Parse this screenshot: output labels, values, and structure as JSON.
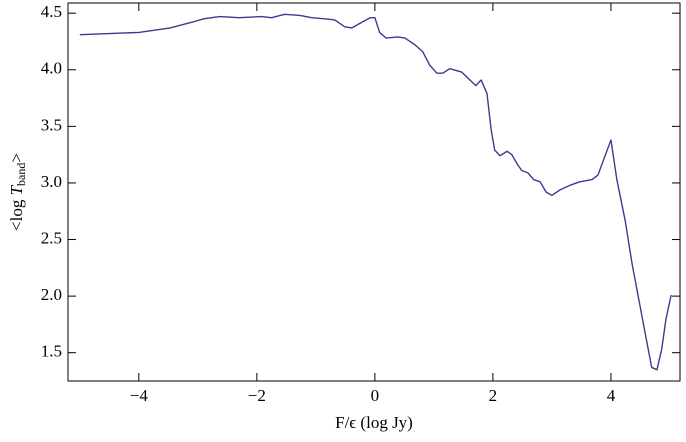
{
  "chart_data": {
    "type": "line",
    "xlabel": "F/ϵ (log Jy)",
    "ylabel_parts": [
      "<log ",
      "T",
      "band",
      ">"
    ],
    "color": "#3b3b8f",
    "xlim": [
      -5.2,
      5.17
    ],
    "ylim": [
      1.25,
      4.59
    ],
    "xticks": [
      {
        "value": -4,
        "label": "−4"
      },
      {
        "value": -2,
        "label": "−2"
      },
      0,
      2,
      4
    ],
    "yticks": [
      1.5,
      {
        "value": 2.0,
        "label": "2.0"
      },
      2.5,
      {
        "value": 3.0,
        "label": "3.0"
      },
      3.5,
      {
        "value": 4.0,
        "label": "4.0"
      },
      4.5
    ],
    "x": [
      -5,
      -4.5,
      -4,
      -3.47,
      -3.1,
      -2.9,
      -2.63,
      -2.3,
      -1.92,
      -1.75,
      -1.53,
      -1.27,
      -1.07,
      -0.85,
      -0.68,
      -0.51,
      -0.39,
      -0.22,
      -0.08,
      0,
      0.08,
      0.19,
      0.39,
      0.51,
      0.68,
      0.81,
      0.93,
      1.05,
      1.15,
      1.27,
      1.47,
      1.61,
      1.71,
      1.8,
      1.9,
      1.97,
      2.03,
      2.12,
      2.24,
      2.32,
      2.42,
      2.49,
      2.59,
      2.69,
      2.8,
      2.9,
      3.0,
      3.14,
      3.31,
      3.47,
      3.68,
      3.78,
      4.0,
      4.1,
      4.24,
      4.36,
      4.49,
      4.61,
      4.69,
      4.78,
      4.86,
      4.93,
      5.02
    ],
    "values": [
      4.31,
      4.32,
      4.33,
      4.37,
      4.42,
      4.45,
      4.47,
      4.46,
      4.47,
      4.46,
      4.49,
      4.48,
      4.46,
      4.45,
      4.44,
      4.38,
      4.37,
      4.42,
      4.46,
      4.46,
      4.33,
      4.28,
      4.29,
      4.28,
      4.22,
      4.16,
      4.04,
      3.97,
      3.97,
      4.01,
      3.98,
      3.91,
      3.86,
      3.91,
      3.79,
      3.47,
      3.29,
      3.24,
      3.28,
      3.25,
      3.16,
      3.11,
      3.09,
      3.03,
      3.01,
      2.92,
      2.89,
      2.94,
      2.98,
      3.01,
      3.03,
      3.07,
      3.38,
      3.03,
      2.67,
      2.28,
      1.92,
      1.59,
      1.37,
      1.35,
      1.53,
      1.79,
      2.01
    ]
  }
}
